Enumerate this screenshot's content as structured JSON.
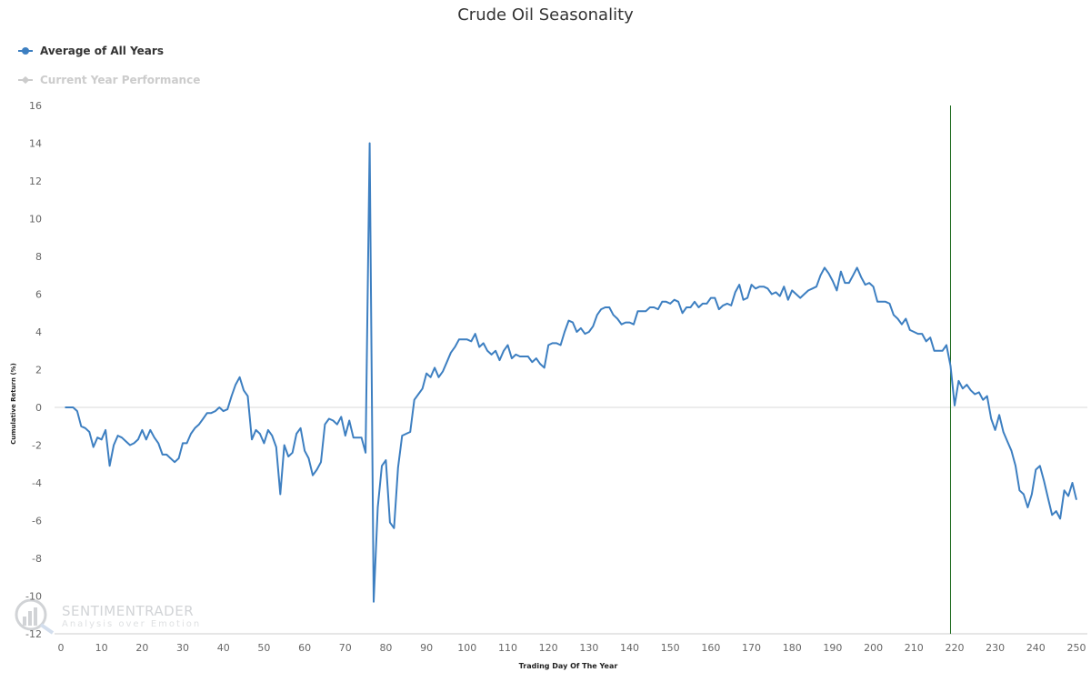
{
  "chart_data": {
    "type": "line",
    "title": "Crude Oil Seasonality",
    "xlabel": "Trading Day Of The Year",
    "ylabel": "Cumulative Return (%)",
    "xlim": [
      0,
      252
    ],
    "ylim": [
      -12,
      16
    ],
    "x_ticks": [
      0,
      10,
      20,
      30,
      40,
      50,
      60,
      70,
      80,
      90,
      100,
      110,
      120,
      130,
      140,
      150,
      160,
      170,
      180,
      190,
      200,
      210,
      220,
      230,
      240,
      250
    ],
    "y_ticks": [
      16,
      14,
      12,
      10,
      8,
      6,
      4,
      2,
      0,
      -2,
      -4,
      -6,
      -8,
      -10,
      -12
    ],
    "grid": false,
    "zero_line": true,
    "legend_position": "top-left",
    "annotations": [
      {
        "type": "vertical-line",
        "x": 219,
        "color": "#1e6b1e",
        "label": "current day marker"
      }
    ],
    "series": [
      {
        "name": "Average of All Years",
        "color": "#3d7fc1",
        "visible": true,
        "x_start": 1,
        "values": [
          0,
          0,
          0,
          -0.2,
          -1.0,
          -1.1,
          -1.3,
          -2.1,
          -1.6,
          -1.7,
          -1.2,
          -3.1,
          -2.0,
          -1.5,
          -1.6,
          -1.8,
          -2.0,
          -1.9,
          -1.7,
          -1.2,
          -1.7,
          -1.2,
          -1.6,
          -1.9,
          -2.5,
          -2.5,
          -2.7,
          -2.9,
          -2.7,
          -1.9,
          -1.9,
          -1.4,
          -1.1,
          -0.9,
          -0.6,
          -0.3,
          -0.3,
          -0.2,
          0.0,
          -0.2,
          -0.1,
          0.6,
          1.2,
          1.6,
          0.9,
          0.6,
          -1.7,
          -1.2,
          -1.4,
          -1.9,
          -1.2,
          -1.5,
          -2.1,
          -4.6,
          -2.0,
          -2.6,
          -2.4,
          -1.4,
          -1.1,
          -2.3,
          -2.7,
          -3.6,
          -3.3,
          -2.9,
          -0.9,
          -0.6,
          -0.7,
          -0.9,
          -0.5,
          -1.5,
          -0.7,
          -1.6,
          -1.6,
          -1.6,
          -2.4,
          14.0,
          -10.3,
          -5.3,
          -3.1,
          -2.8,
          -6.1,
          -6.4,
          -3.2,
          -1.5,
          -1.4,
          -1.3,
          0.4,
          0.7,
          1.0,
          1.8,
          1.6,
          2.1,
          1.6,
          1.9,
          2.4,
          2.9,
          3.2,
          3.6,
          3.6,
          3.6,
          3.5,
          3.9,
          3.2,
          3.4,
          3.0,
          2.8,
          3.0,
          2.5,
          3.0,
          3.3,
          2.6,
          2.8,
          2.7,
          2.7,
          2.7,
          2.4,
          2.6,
          2.3,
          2.1,
          3.3,
          3.4,
          3.4,
          3.3,
          4.0,
          4.6,
          4.5,
          4.0,
          4.2,
          3.9,
          4.0,
          4.3,
          4.9,
          5.2,
          5.3,
          5.3,
          4.9,
          4.7,
          4.4,
          4.5,
          4.5,
          4.4,
          5.1,
          5.1,
          5.1,
          5.3,
          5.3,
          5.2,
          5.6,
          5.6,
          5.5,
          5.7,
          5.6,
          5.0,
          5.3,
          5.3,
          5.6,
          5.3,
          5.5,
          5.5,
          5.8,
          5.8,
          5.2,
          5.4,
          5.5,
          5.4,
          6.1,
          6.5,
          5.7,
          5.8,
          6.5,
          6.3,
          6.4,
          6.4,
          6.3,
          6.0,
          6.1,
          5.9,
          6.4,
          5.7,
          6.2,
          6.0,
          5.8,
          6.0,
          6.2,
          6.3,
          6.4,
          7.0,
          7.4,
          7.1,
          6.7,
          6.2,
          7.2,
          6.6,
          6.6,
          7.0,
          7.4,
          6.9,
          6.5,
          6.6,
          6.4,
          5.6,
          5.6,
          5.6,
          5.5,
          4.9,
          4.7,
          4.4,
          4.7,
          4.1,
          4.0,
          3.9,
          3.9,
          3.5,
          3.7,
          3.0,
          3.0,
          3.0,
          3.3,
          2.2,
          0.1,
          1.4,
          1.0,
          1.2,
          0.9,
          0.7,
          0.8,
          0.4,
          0.6,
          -0.6,
          -1.2,
          -0.4,
          -1.3,
          -1.8,
          -2.3,
          -3.1,
          -4.4,
          -4.6,
          -5.3,
          -4.6,
          -3.3,
          -3.1,
          -3.9,
          -4.8,
          -5.7,
          -5.5,
          -5.9,
          -4.4,
          -4.7,
          -4.0,
          -4.9
        ]
      },
      {
        "name": "Current Year Performance",
        "color": "#cccccc",
        "visible": false,
        "values": []
      }
    ]
  },
  "legend": {
    "items": [
      {
        "label": "Average of All Years",
        "color": "#3d7fc1",
        "text_color": "#333333"
      },
      {
        "label": "Current Year Performance",
        "color": "#cccccc",
        "text_color": "#cccccc"
      }
    ]
  },
  "watermark": {
    "brand": "SENTIMENTRADER",
    "tagline": "Analysis over Emotion",
    "icon": "magnifier-chart-icon"
  }
}
